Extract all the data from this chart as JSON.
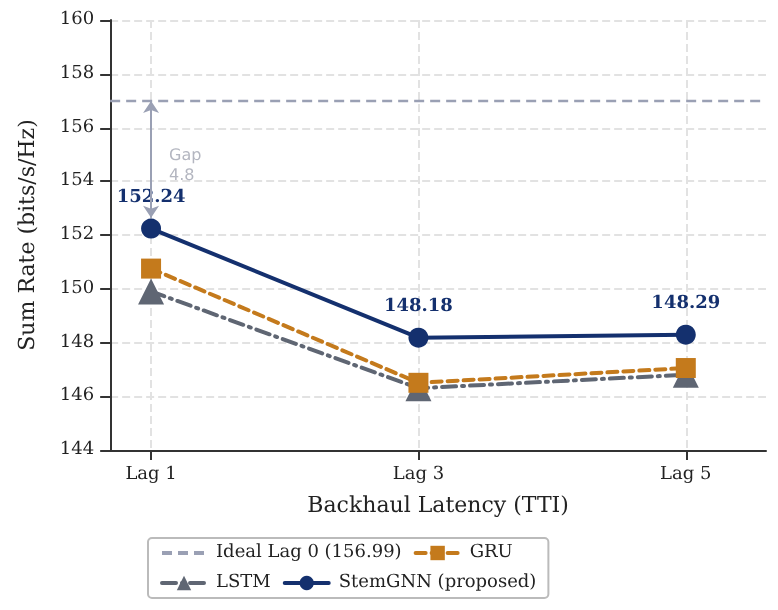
{
  "chart_data": {
    "type": "line",
    "xlabel": "Backhaul Latency (TTI)",
    "ylabel": "Sum Rate (bits/s/Hz)",
    "categories": [
      "Lag 1",
      "Lag 3",
      "Lag 5"
    ],
    "series": [
      {
        "name": "LSTM",
        "color": "#5f6673",
        "values": [
          149.9,
          146.3,
          146.8
        ],
        "marker": "triangle",
        "line_style": "dashdot"
      },
      {
        "name": "GRU",
        "color": "#c47a1c",
        "values": [
          150.75,
          146.5,
          147.05
        ],
        "marker": "square",
        "line_style": "dashed"
      },
      {
        "name": "StemGNN (proposed)",
        "color": "#14306e",
        "values": [
          152.24,
          148.18,
          148.29
        ],
        "marker": "circle",
        "line_style": "solid",
        "value_labels": [
          "152.24",
          "148.18",
          "148.29"
        ]
      }
    ],
    "ref_lines": [
      {
        "axis": "y",
        "value": 156.99,
        "label": "Ideal Lag 0 (156.99)",
        "color": "#9aa0b4",
        "line_style": "dashed"
      }
    ],
    "annotations": [
      "Gap\n4.8"
    ],
    "ylim": [
      144,
      160
    ],
    "yticks": [
      144,
      146,
      148,
      150,
      152,
      154,
      156,
      158,
      160
    ],
    "grid": true,
    "legend": "bottom"
  }
}
